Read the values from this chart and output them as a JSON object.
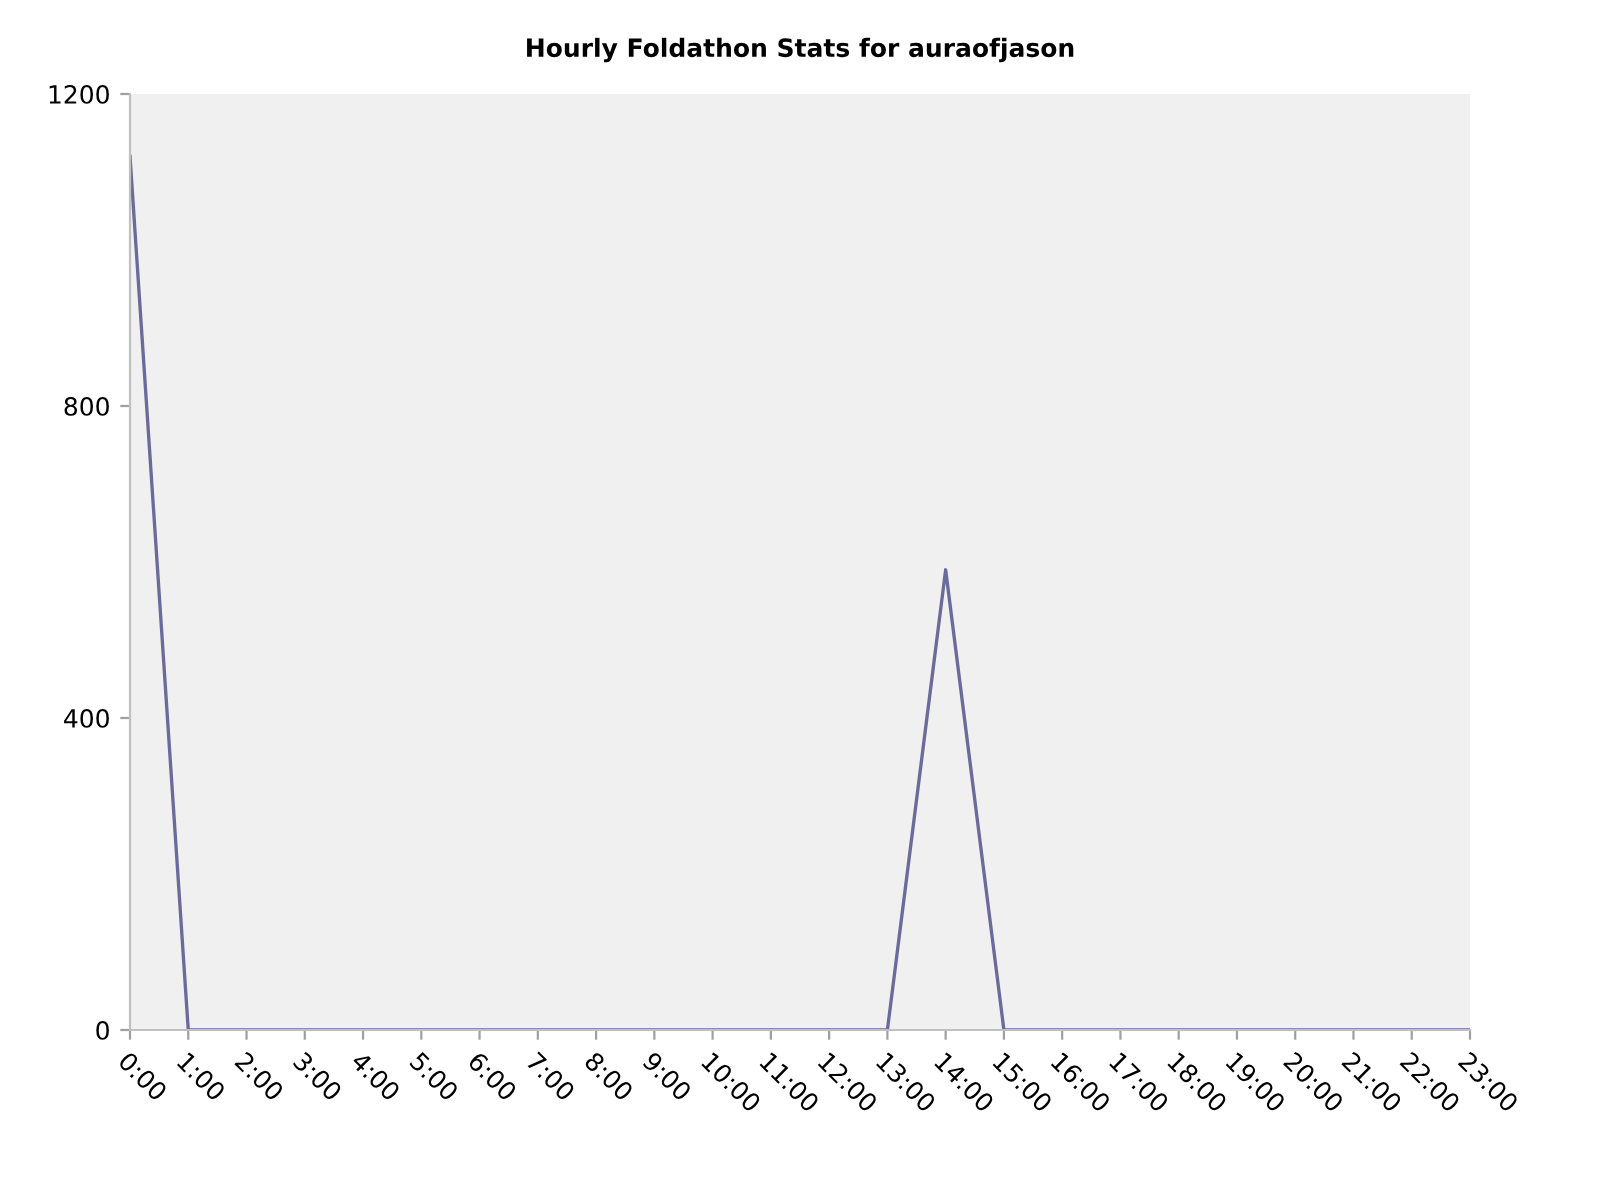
{
  "chart_data": {
    "type": "line",
    "title": "Hourly Foldathon Stats for auraofjason",
    "categories": [
      "0:00",
      "1:00",
      "2:00",
      "3:00",
      "4:00",
      "5:00",
      "6:00",
      "7:00",
      "8:00",
      "9:00",
      "10:00",
      "11:00",
      "12:00",
      "13:00",
      "14:00",
      "15:00",
      "16:00",
      "17:00",
      "18:00",
      "19:00",
      "20:00",
      "21:00",
      "22:00",
      "23:00"
    ],
    "series": [
      {
        "color": "#6b6b9b",
        "values": [
          1120,
          0,
          0,
          0,
          0,
          0,
          0,
          0,
          0,
          0,
          0,
          0,
          0,
          0,
          590,
          0,
          0,
          0,
          0,
          0,
          0,
          0,
          0,
          0
        ]
      }
    ],
    "ylim": [
      0,
      1200
    ],
    "yticks": [
      0,
      400,
      800,
      1200
    ],
    "marker": "none",
    "line_style": "solid"
  }
}
